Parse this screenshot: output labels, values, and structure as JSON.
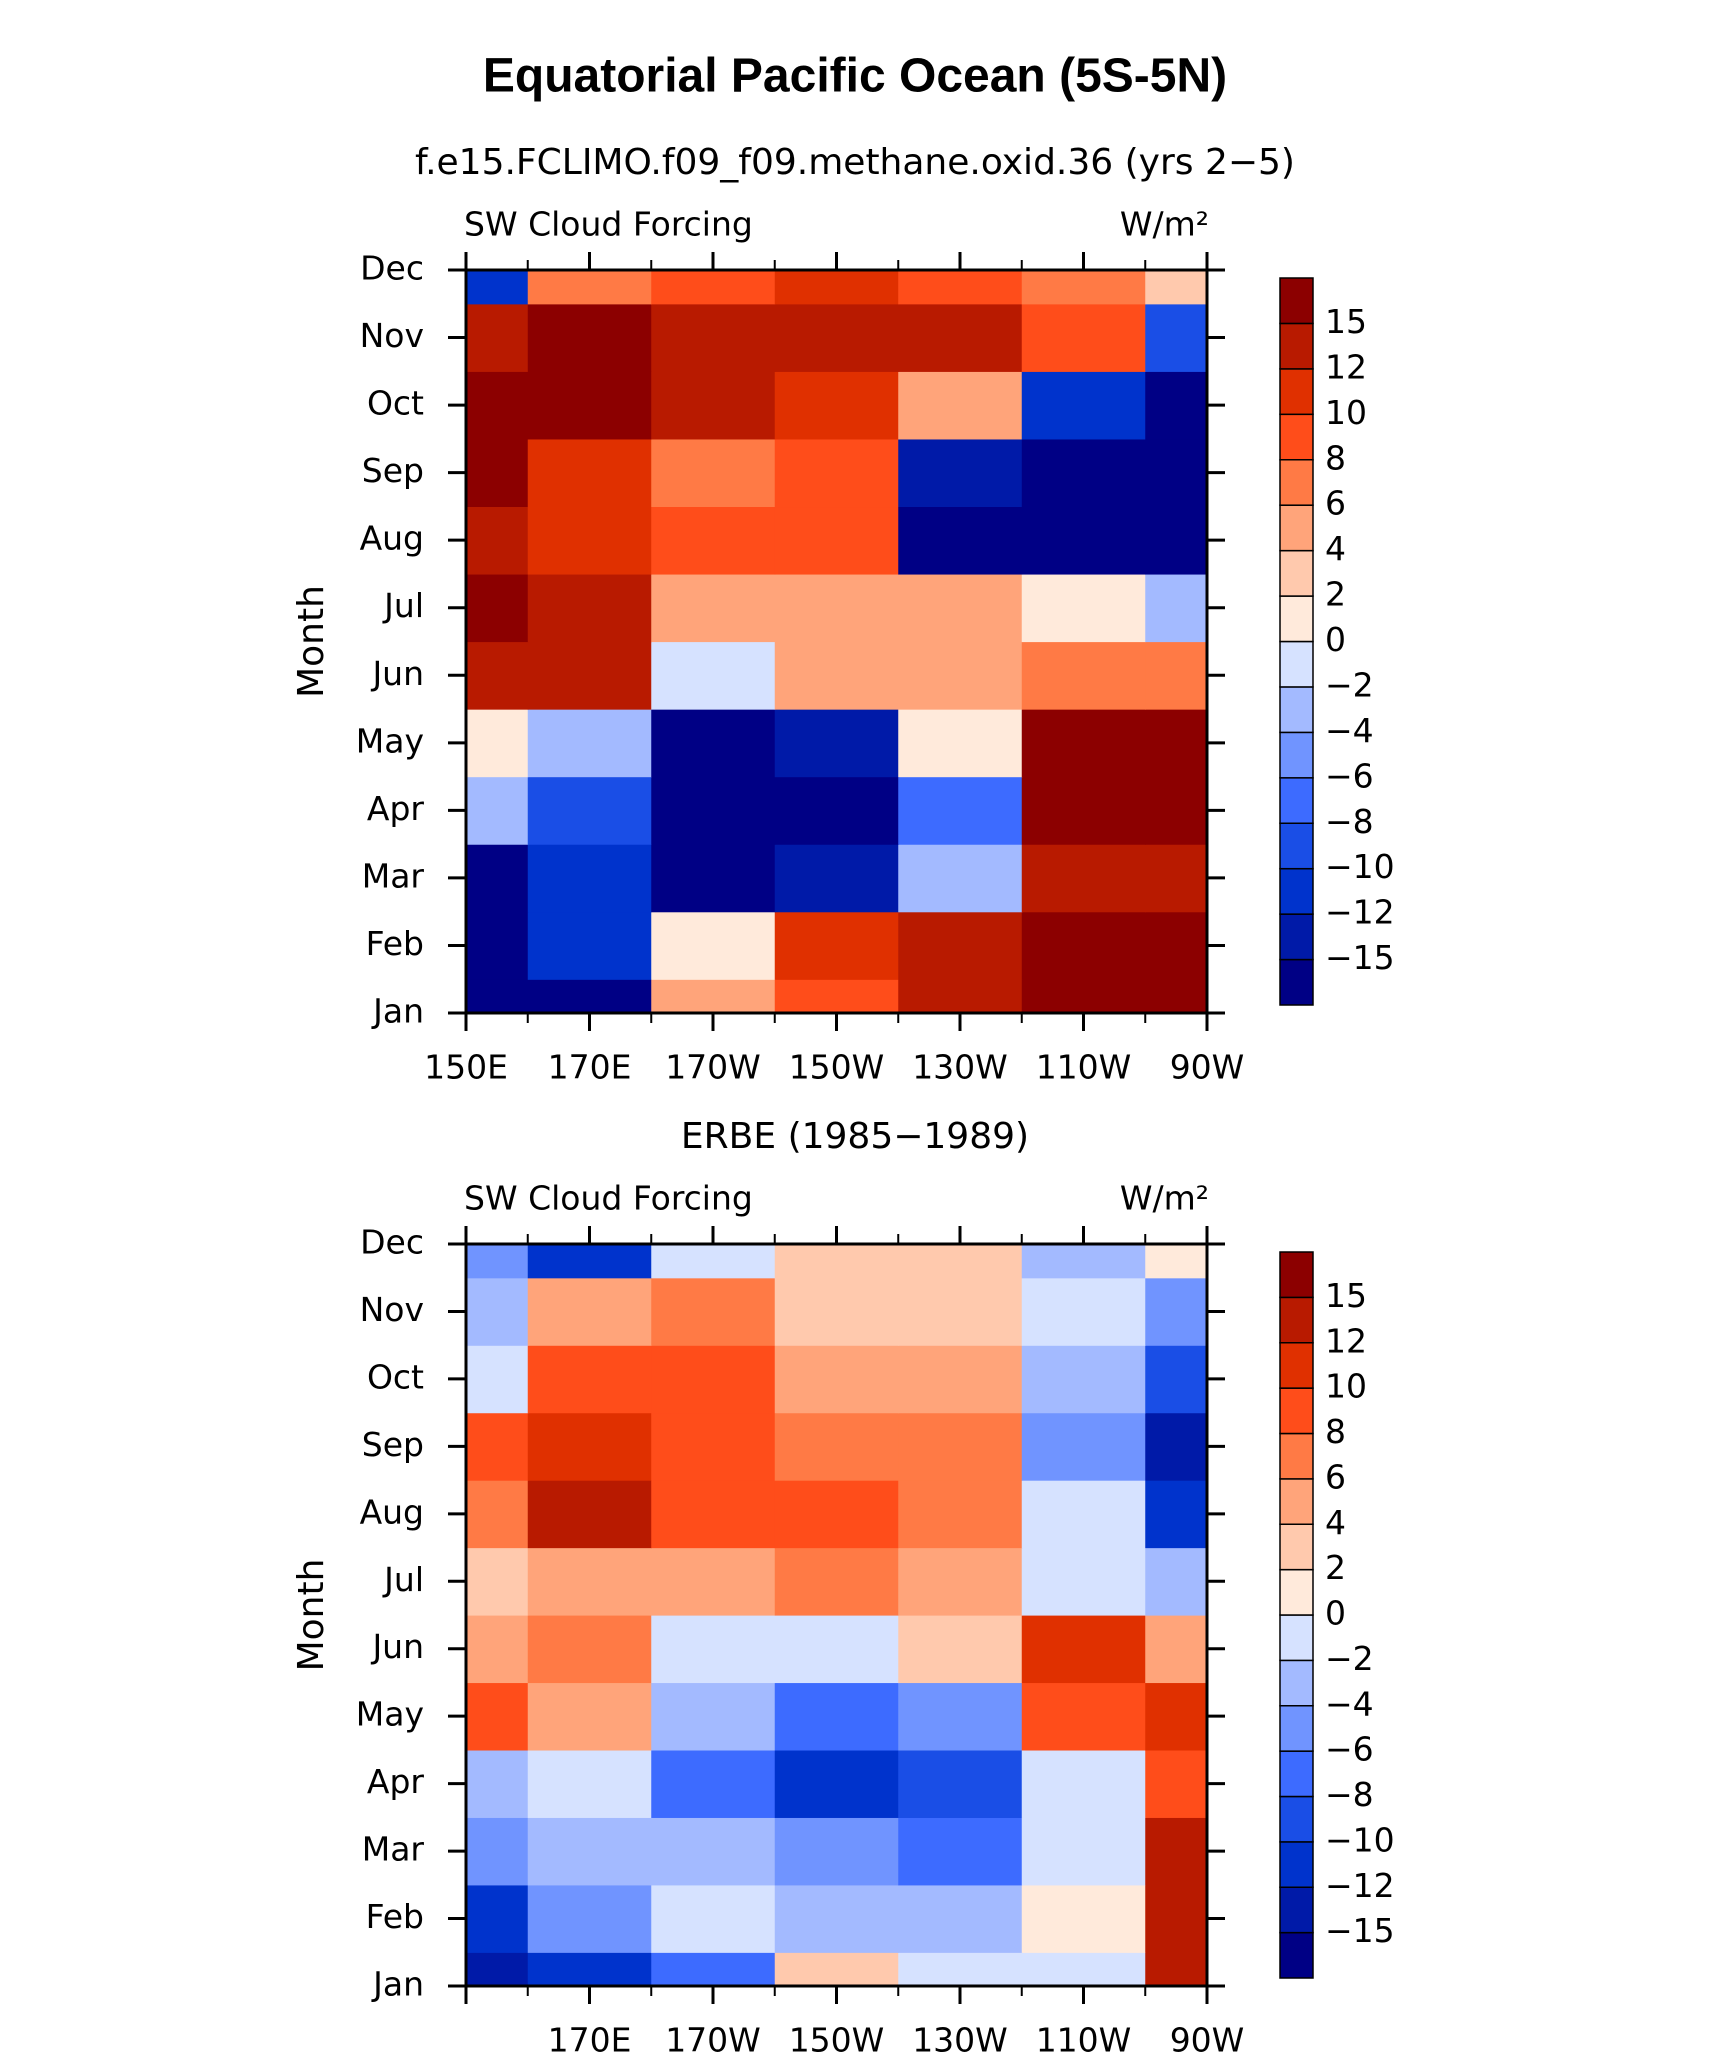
{
  "title": "Equatorial Pacific Ocean (5S-5N)",
  "chart_data": [
    {
      "type": "heatmap",
      "title": "f.e15.FCLIMO.f09_f09.methane.oxid.36 (yrs 2−5)",
      "left_label": "SW Cloud Forcing",
      "right_label": "W/m²",
      "y_label": "Month",
      "x_categories": [
        "150E",
        "170E",
        "170W",
        "150W",
        "130W",
        "110W",
        "90W"
      ],
      "y_categories": [
        "Jan",
        "Feb",
        "Mar",
        "Apr",
        "May",
        "Jun",
        "Jul",
        "Aug",
        "Sep",
        "Oct",
        "Nov",
        "Dec"
      ],
      "values": [
        [
          -16,
          -16,
          4,
          8,
          14,
          16,
          16
        ],
        [
          -16,
          -12,
          0,
          10,
          14,
          16,
          16
        ],
        [
          -16,
          -12,
          -16,
          -14,
          -4,
          14,
          14
        ],
        [
          -4,
          -10,
          -18,
          -18,
          -8,
          16,
          16
        ],
        [
          0,
          -4,
          -16,
          -14,
          0,
          16,
          16
        ],
        [
          14,
          12,
          -2,
          4,
          4,
          6,
          6
        ],
        [
          16,
          14,
          4,
          4,
          4,
          0,
          -4
        ],
        [
          14,
          10,
          8,
          8,
          -16,
          -18,
          -16
        ],
        [
          16,
          10,
          6,
          8,
          -14,
          -18,
          -18
        ],
        [
          16,
          16,
          12,
          10,
          4,
          -12,
          -18
        ],
        [
          14,
          15,
          14,
          12,
          12,
          8,
          -10
        ],
        [
          -12,
          6,
          8,
          10,
          8,
          6,
          2
        ]
      ],
      "levels": [
        {
          "value": -15,
          "label": "−15"
        },
        {
          "value": -12,
          "label": "−12"
        },
        {
          "value": -10,
          "label": "−10"
        },
        {
          "value": -8,
          "label": "−8"
        },
        {
          "value": -6,
          "label": "−6"
        },
        {
          "value": -4,
          "label": "−4"
        },
        {
          "value": -2,
          "label": "−2"
        },
        0,
        2,
        4,
        6,
        8,
        10,
        12,
        15
      ],
      "colors": [
        "#000085",
        "#001aa8",
        "#0033cc",
        "#1a4ee6",
        "#3d6bff",
        "#7094ff",
        "#a3baff",
        "#d6e2ff",
        "#ffeadb",
        "#ffc9ad",
        "#ffa47a",
        "#ff7a45",
        "#ff4d1a",
        "#e03000",
        "#b81a00",
        "#8c0000"
      ]
    },
    {
      "type": "heatmap",
      "title": "ERBE (1985−1989)",
      "left_label": "SW Cloud Forcing",
      "right_label": "W/m²",
      "y_label": "Month",
      "x_categories": [
        null,
        "170E",
        "170W",
        "150W",
        "130W",
        "110W",
        "90W"
      ],
      "y_categories": [
        "Jan",
        "Feb",
        "Mar",
        "Apr",
        "May",
        "Jun",
        "Jul",
        "Aug",
        "Sep",
        "Oct",
        "Nov",
        "Dec"
      ],
      "values": [
        [
          -14,
          -12,
          -8,
          2,
          -2,
          -2,
          12
        ],
        [
          -12,
          -6,
          -2,
          -4,
          -4,
          0,
          12
        ],
        [
          -6,
          -4,
          -4,
          -6,
          -8,
          -2,
          12
        ],
        [
          -4,
          -2,
          -8,
          -12,
          -10,
          -2,
          8
        ],
        [
          8,
          4,
          -4,
          -8,
          -6,
          8,
          10
        ],
        [
          4,
          6,
          -2,
          -2,
          2,
          10,
          4
        ],
        [
          2,
          4,
          4,
          6,
          4,
          -2,
          -4
        ],
        [
          6,
          12,
          8,
          8,
          6,
          -2,
          -12
        ],
        [
          8,
          10,
          8,
          6,
          6,
          -6,
          -14
        ],
        [
          -2,
          8,
          8,
          4,
          4,
          -4,
          -10
        ],
        [
          -4,
          4,
          6,
          2,
          2,
          -2,
          -6
        ],
        [
          -6,
          -12,
          -2,
          2,
          2,
          -4,
          0
        ]
      ],
      "levels": [
        {
          "value": -15,
          "label": "−15"
        },
        {
          "value": -12,
          "label": "−12"
        },
        {
          "value": -10,
          "label": "−10"
        },
        {
          "value": -8,
          "label": "−8"
        },
        {
          "value": -6,
          "label": "−6"
        },
        {
          "value": -4,
          "label": "−4"
        },
        {
          "value": -2,
          "label": "−2"
        },
        0,
        2,
        4,
        6,
        8,
        10,
        12,
        15
      ],
      "colors": [
        "#000085",
        "#001aa8",
        "#0033cc",
        "#1a4ee6",
        "#3d6bff",
        "#7094ff",
        "#a3baff",
        "#d6e2ff",
        "#ffeadb",
        "#ffc9ad",
        "#ffa47a",
        "#ff7a45",
        "#ff4d1a",
        "#e03000",
        "#b81a00",
        "#8c0000"
      ]
    }
  ]
}
